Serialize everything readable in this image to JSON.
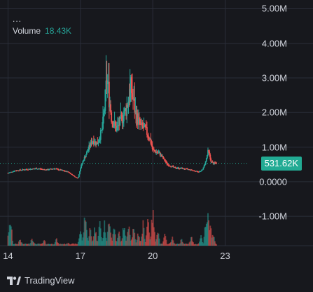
{
  "legend": {
    "dots": "...",
    "volume_label": "Volume",
    "volume_value": "18.43K"
  },
  "price_badge": "531.62K",
  "brand": "TradingView",
  "colors": {
    "up": "#26a69a",
    "down": "#ef5350",
    "badge": "#22ab94",
    "grid": "#2a2e39",
    "background": "#17181d"
  },
  "chart_data": {
    "type": "candlestick",
    "y_axis": {
      "ticks": [
        {
          "value": 5000000,
          "label": "5.00M"
        },
        {
          "value": 4000000,
          "label": "4.00M"
        },
        {
          "value": 3000000,
          "label": "3.00M"
        },
        {
          "value": 2000000,
          "label": "2.00M"
        },
        {
          "value": 1000000,
          "label": "1.00M"
        },
        {
          "value": 0,
          "label": "0.0000"
        },
        {
          "value": -1000000,
          "label": "-1.00M"
        }
      ],
      "range": [
        -1850000,
        5050000
      ]
    },
    "x_axis": {
      "ticks": [
        "14",
        "17",
        "20",
        "23"
      ],
      "range_days": [
        13.9,
        24.0
      ]
    },
    "last_price": 531620,
    "price_path": [
      [
        14.0,
        250000
      ],
      [
        14.3,
        320000
      ],
      [
        14.7,
        350000
      ],
      [
        15.2,
        380000
      ],
      [
        15.6,
        340000
      ],
      [
        15.9,
        380000
      ],
      [
        16.2,
        330000
      ],
      [
        16.5,
        280000
      ],
      [
        16.8,
        130000
      ],
      [
        16.9,
        100000
      ],
      [
        17.0,
        380000
      ],
      [
        17.1,
        580000
      ],
      [
        17.3,
        900000
      ],
      [
        17.5,
        1200000
      ],
      [
        17.7,
        1100000
      ],
      [
        17.9,
        1500000
      ],
      [
        18.0,
        2100000
      ],
      [
        18.1,
        3000000
      ],
      [
        18.3,
        1800000
      ],
      [
        18.5,
        1500000
      ],
      [
        18.7,
        1800000
      ],
      [
        18.9,
        2100000
      ],
      [
        19.1,
        2700000
      ],
      [
        19.3,
        1900000
      ],
      [
        19.5,
        1600000
      ],
      [
        19.7,
        1500000
      ],
      [
        19.9,
        1200000
      ],
      [
        20.0,
        900000
      ],
      [
        20.3,
        800000
      ],
      [
        20.6,
        500000
      ],
      [
        20.9,
        400000
      ],
      [
        21.2,
        380000
      ],
      [
        21.5,
        350000
      ],
      [
        21.8,
        300000
      ],
      [
        21.9,
        290000
      ],
      [
        22.0,
        300000
      ],
      [
        22.1,
        400000
      ],
      [
        22.2,
        600000
      ],
      [
        22.3,
        900000
      ],
      [
        22.4,
        600000
      ],
      [
        22.5,
        520000
      ],
      [
        22.6,
        531620
      ]
    ],
    "volume_spikes": [
      [
        14.0,
        0.35
      ],
      [
        14.1,
        0.75
      ],
      [
        14.5,
        0.2
      ],
      [
        15.0,
        0.25
      ],
      [
        15.5,
        0.15
      ],
      [
        16.0,
        0.2
      ],
      [
        16.5,
        0.1
      ],
      [
        17.0,
        0.45
      ],
      [
        17.2,
        1.0
      ],
      [
        17.4,
        0.5
      ],
      [
        17.6,
        0.55
      ],
      [
        17.8,
        0.7
      ],
      [
        18.0,
        0.6
      ],
      [
        18.2,
        0.9
      ],
      [
        18.4,
        0.55
      ],
      [
        18.6,
        0.4
      ],
      [
        18.8,
        0.6
      ],
      [
        19.0,
        0.75
      ],
      [
        19.2,
        0.5
      ],
      [
        19.4,
        0.4
      ],
      [
        19.6,
        0.6
      ],
      [
        19.8,
        0.85
      ],
      [
        20.0,
        1.0
      ],
      [
        20.2,
        0.5
      ],
      [
        20.5,
        0.3
      ],
      [
        20.8,
        0.25
      ],
      [
        21.2,
        0.2
      ],
      [
        21.6,
        0.25
      ],
      [
        22.0,
        0.3
      ],
      [
        22.2,
        0.65
      ],
      [
        22.3,
        0.95
      ],
      [
        22.4,
        0.55
      ],
      [
        22.5,
        0.35
      ]
    ]
  }
}
